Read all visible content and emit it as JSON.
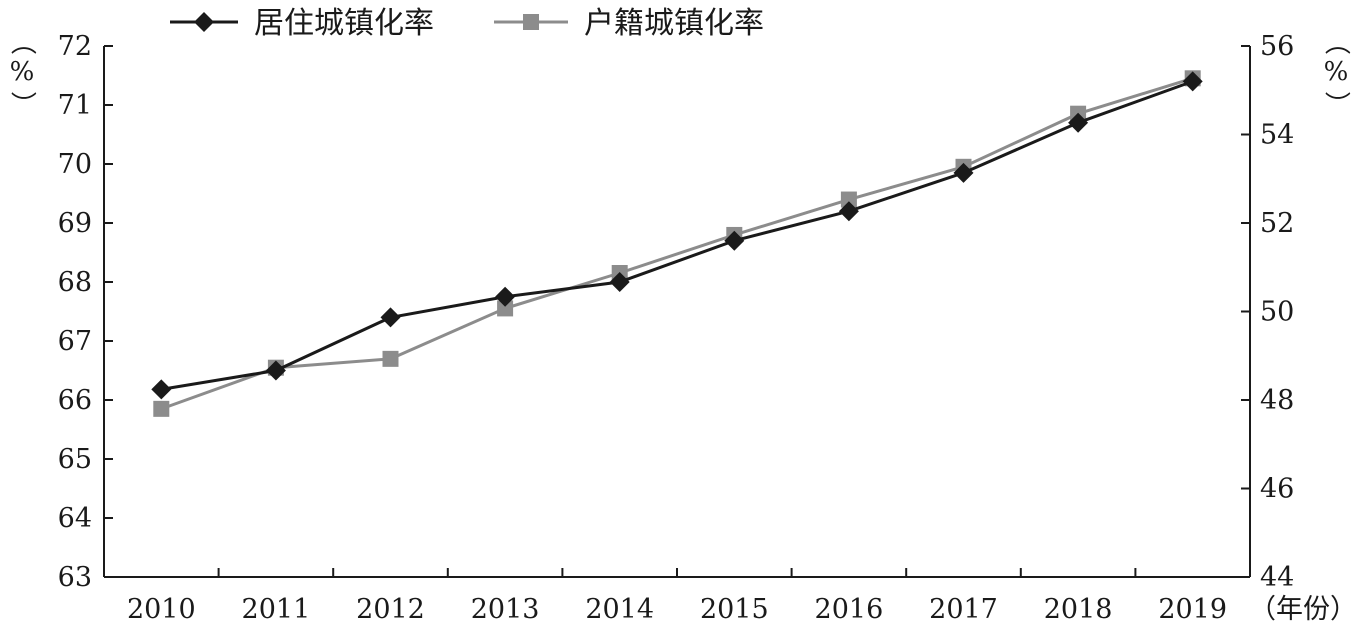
{
  "chart_data": {
    "type": "line",
    "categories": [
      "2010",
      "2011",
      "2012",
      "2013",
      "2014",
      "2015",
      "2016",
      "2017",
      "2018",
      "2019"
    ],
    "x_unit_label": "（年份）",
    "left_axis": {
      "unit_label": "（%）",
      "ylim": [
        63,
        72
      ],
      "ticks": [
        "63",
        "64",
        "65",
        "66",
        "67",
        "68",
        "69",
        "70",
        "71",
        "72"
      ]
    },
    "right_axis": {
      "unit_label": "（%）",
      "ylim": [
        44,
        56
      ],
      "ticks": [
        "44",
        "46",
        "48",
        "50",
        "52",
        "54",
        "56"
      ]
    },
    "series": [
      {
        "name": "居住城镇化率",
        "axis": "left",
        "marker": "diamond",
        "color": "#1a1a1a",
        "values": [
          66.18,
          66.5,
          67.4,
          67.75,
          68.0,
          68.7,
          69.2,
          69.85,
          70.7,
          71.4
        ]
      },
      {
        "name": "户籍城镇化率",
        "axis": "right",
        "marker": "square",
        "color": "#8c8c8c",
        "values": [
          47.8,
          48.73,
          48.93,
          50.07,
          50.87,
          51.73,
          52.53,
          53.27,
          54.47,
          55.27
        ]
      }
    ],
    "legend_position": "top-left",
    "grid": false
  }
}
